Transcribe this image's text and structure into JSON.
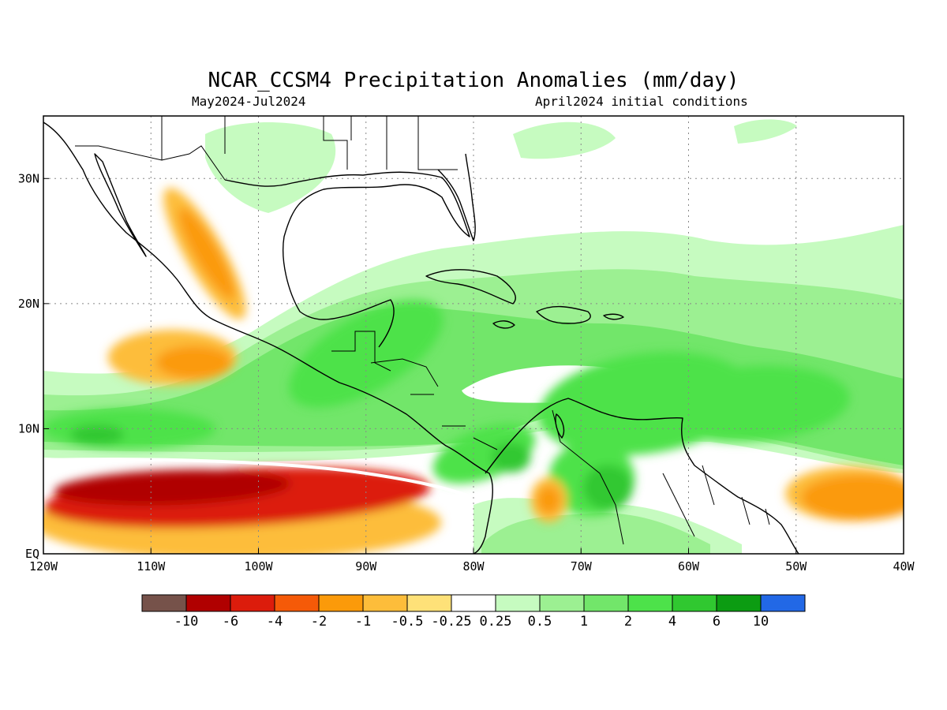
{
  "title": "NCAR_CCSM4 Precipitation Anomalies (mm/day)",
  "subtitle_left": "May2024-Jul2024",
  "subtitle_right": "April2024 initial conditions",
  "map": {
    "lon_range": [
      -120,
      -40
    ],
    "lat_range": [
      0,
      35
    ],
    "lon_ticks": [
      {
        "value": -120,
        "label": "120W"
      },
      {
        "value": -110,
        "label": "110W"
      },
      {
        "value": -100,
        "label": "100W"
      },
      {
        "value": -90,
        "label": "90W"
      },
      {
        "value": -80,
        "label": "80W"
      },
      {
        "value": -70,
        "label": "70W"
      },
      {
        "value": -60,
        "label": "60W"
      },
      {
        "value": -50,
        "label": "50W"
      },
      {
        "value": -40,
        "label": "40W"
      }
    ],
    "lat_ticks": [
      {
        "value": 0,
        "label": "EQ"
      },
      {
        "value": 10,
        "label": "10N"
      },
      {
        "value": 20,
        "label": "20N"
      },
      {
        "value": 30,
        "label": "30N"
      }
    ],
    "grid": true
  },
  "colorbar": {
    "colors": [
      "#76524a",
      "#b00000",
      "#dc1c0c",
      "#f55a08",
      "#fb9a0a",
      "#fdbd3a",
      "#fee178",
      "#ffffff",
      "#c6fbc0",
      "#9cf092",
      "#72e66a",
      "#4de24a",
      "#30c830",
      "#0c9c12",
      "#2268e6"
    ],
    "labels": [
      "-10",
      "-6",
      "-4",
      "-2",
      "-1",
      "-0.5",
      "-0.25",
      "0.25",
      "0.5",
      "1",
      "2",
      "4",
      "6",
      "10"
    ]
  },
  "fields": [
    {
      "level": "4",
      "color": "#4de24a",
      "regions": [
        {
          "lon": -64,
          "lat": 12,
          "rx": 10,
          "ry": 4,
          "rot": -8
        },
        {
          "lon": -54,
          "lat": 12,
          "rx": 9,
          "ry": 3,
          "rot": -4
        },
        {
          "lon": -90,
          "lat": 16,
          "rx": 8,
          "ry": 3,
          "rot": -30
        },
        {
          "lon": -112,
          "lat": 10,
          "rx": 8,
          "ry": 1.6,
          "rot": 0
        },
        {
          "lon": -79,
          "lat": 8,
          "rx": 5,
          "ry": 2,
          "rot": -20
        },
        {
          "lon": -69,
          "lat": 6,
          "rx": 4,
          "ry": 3,
          "rot": 0
        }
      ]
    },
    {
      "level": "6",
      "color": "#30c830",
      "regions": [
        {
          "lon": -115,
          "lat": 9.5,
          "rx": 2.5,
          "ry": 0.8,
          "rot": 0
        },
        {
          "lon": -76.5,
          "lat": 7.7,
          "rx": 1.8,
          "ry": 1.2,
          "rot": 0
        },
        {
          "lon": -67.5,
          "lat": 5.3,
          "rx": 2.3,
          "ry": 1.8,
          "rot": 0
        }
      ]
    }
  ],
  "negative_fields": [
    {
      "level": "-0.5",
      "color": "#fdbd3a",
      "regions": [
        {
          "lon": -108,
          "lat": 15.7,
          "rx": 6,
          "ry": 2.2,
          "rot": 0
        },
        {
          "lon": -105,
          "lat": 24,
          "rx": 1.8,
          "ry": 6,
          "rot": -30
        },
        {
          "lon": -45,
          "lat": 4.8,
          "rx": 6,
          "ry": 2.2,
          "rot": 0
        },
        {
          "lon": -73,
          "lat": 4.3,
          "rx": 1.7,
          "ry": 1.8,
          "rot": 0
        },
        {
          "lon": -102,
          "lat": 2.5,
          "rx": 19,
          "ry": 3,
          "rot": 0
        }
      ]
    },
    {
      "level": "-1",
      "color": "#fb9a0a",
      "regions": [
        {
          "lon": -106,
          "lat": 15.3,
          "rx": 3.5,
          "ry": 1.3,
          "rot": 0
        },
        {
          "lon": -104.8,
          "lat": 24,
          "rx": 1.1,
          "ry": 4.2,
          "rot": -30
        },
        {
          "lon": -44,
          "lat": 4.5,
          "rx": 5.5,
          "ry": 1.8,
          "rot": 0
        },
        {
          "lon": -73,
          "lat": 4.3,
          "rx": 1.1,
          "ry": 1.1,
          "rot": 0
        }
      ]
    },
    {
      "level": "-4",
      "color": "#dc1c0c",
      "regions": [
        {
          "lon": -102,
          "lat": 4.5,
          "rx": 18,
          "ry": 2.3,
          "rot": -3
        }
      ]
    },
    {
      "level": "-6",
      "color": "#b00000",
      "regions": [
        {
          "lon": -108,
          "lat": 5.3,
          "rx": 11,
          "ry": 1.4,
          "rot": -2
        }
      ]
    }
  ]
}
